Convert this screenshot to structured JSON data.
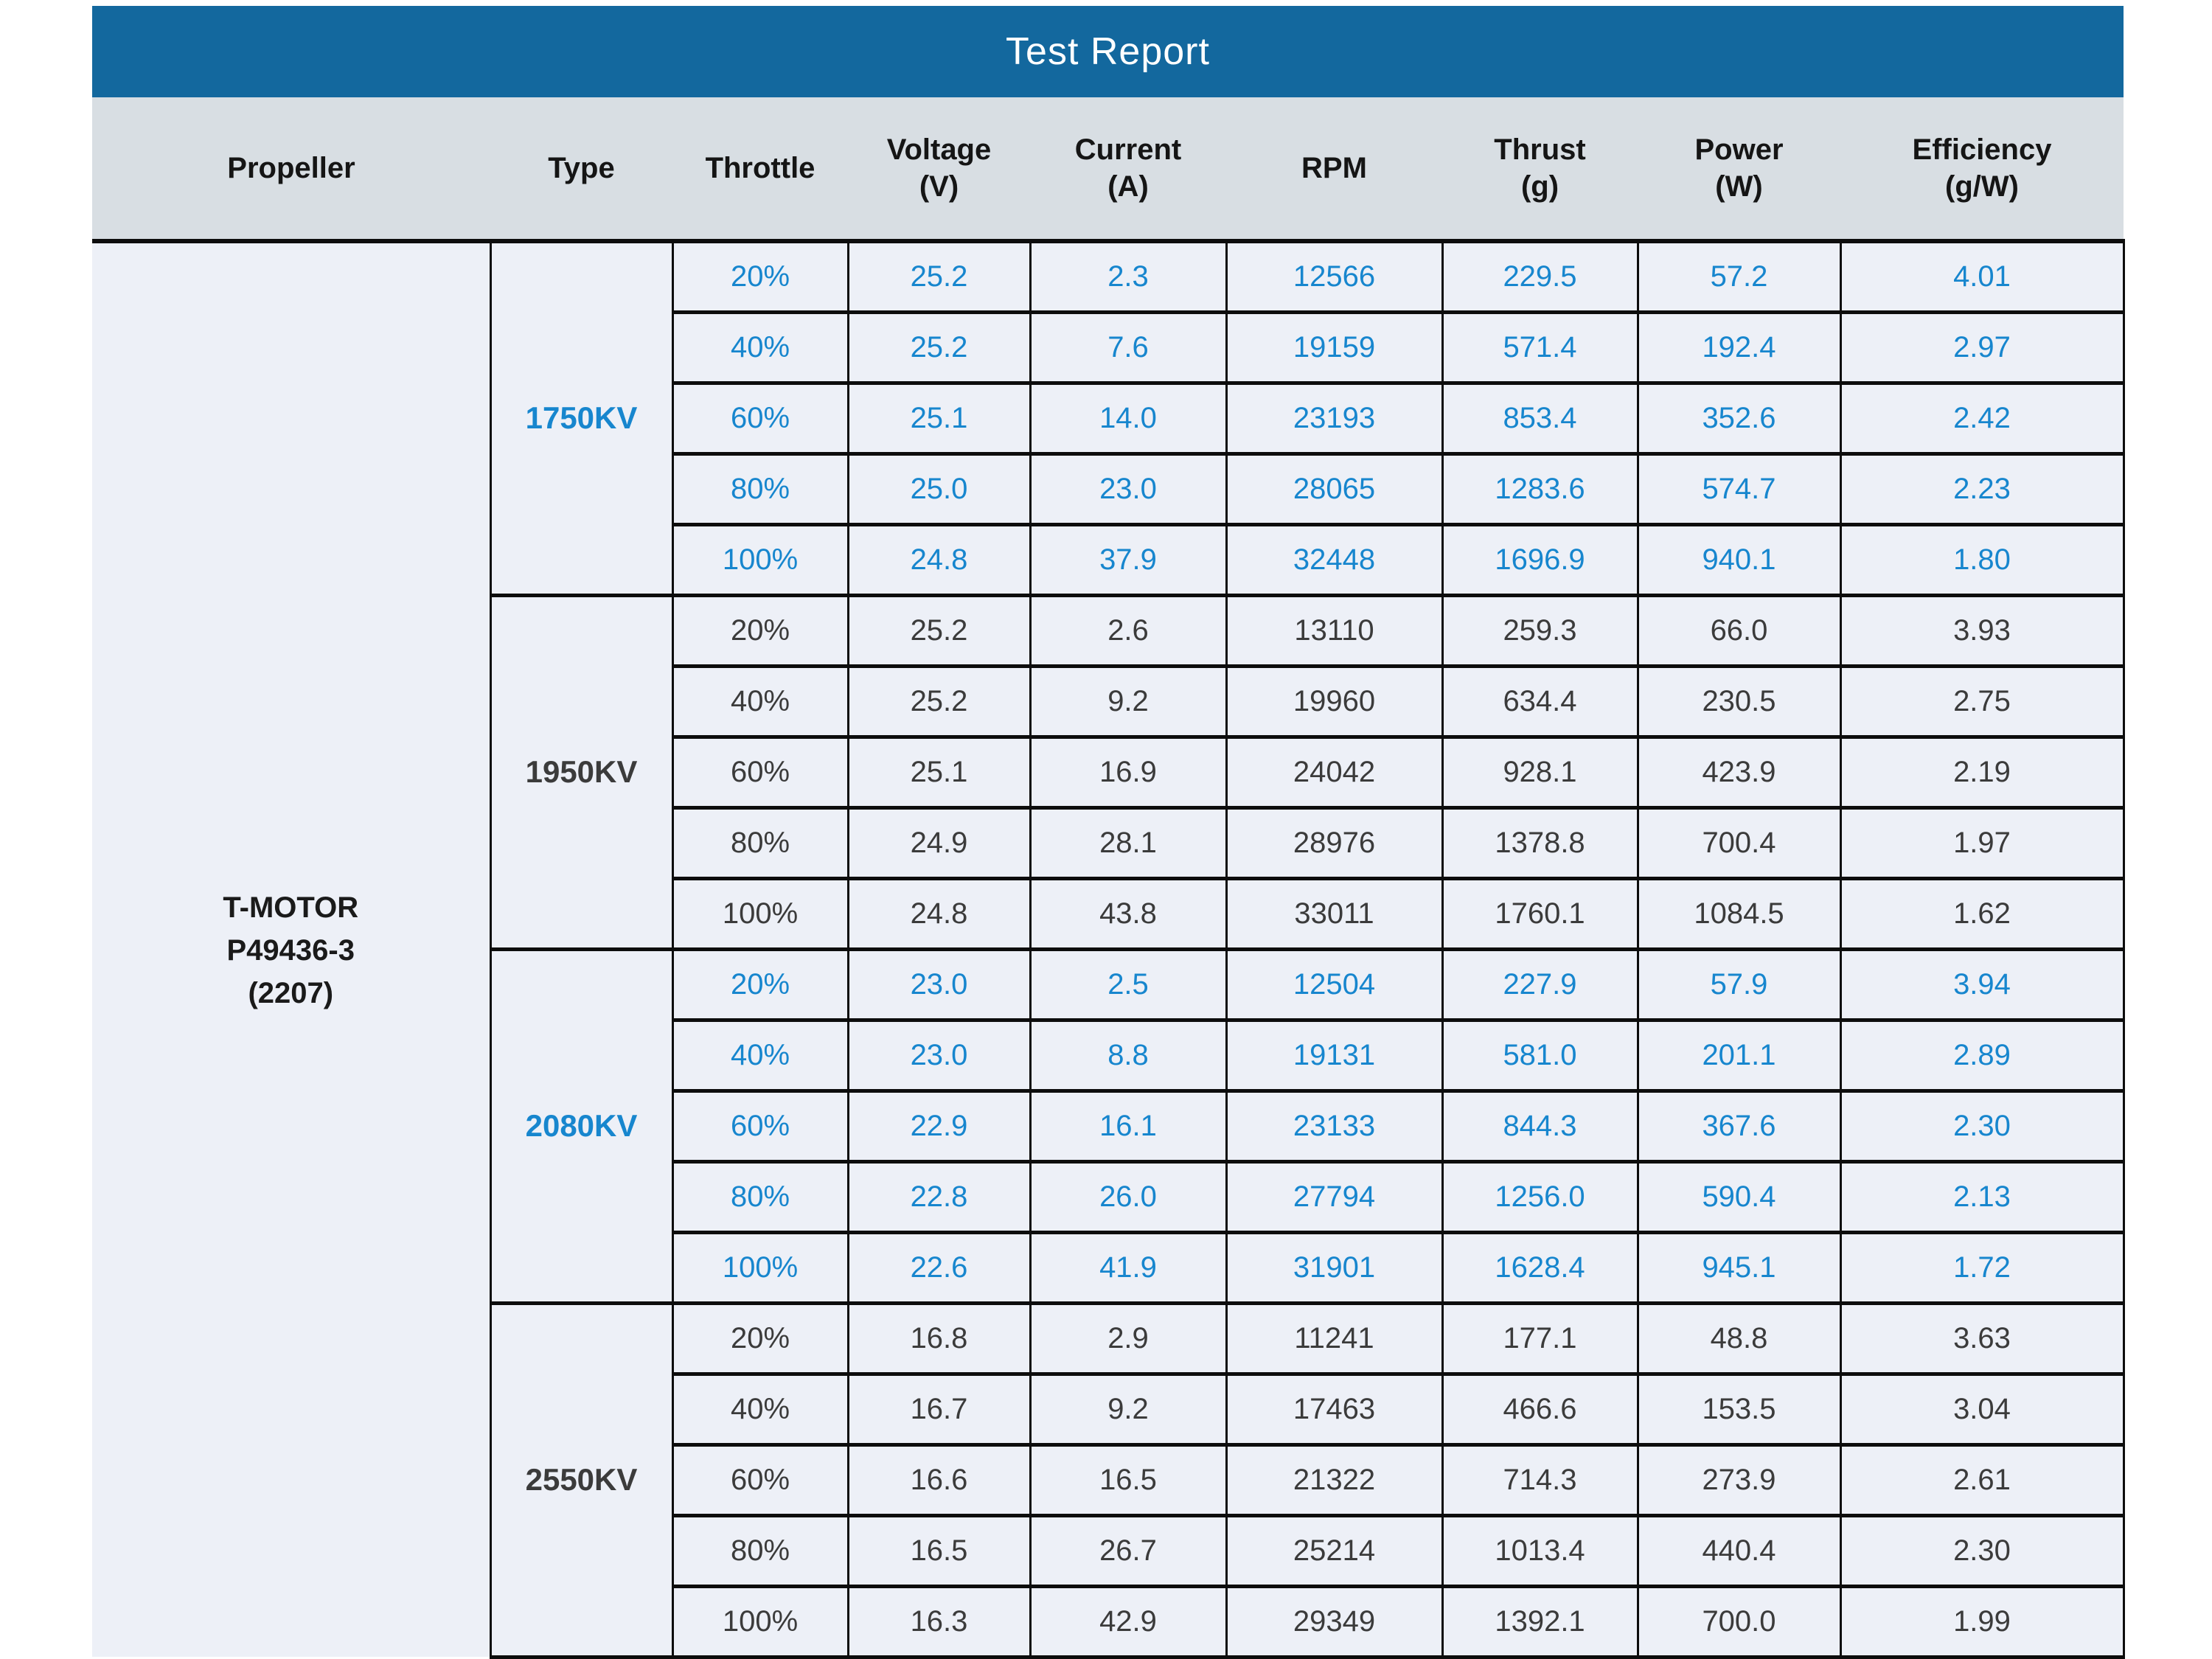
{
  "title": "Test Report",
  "colors": {
    "title_bar": "#13689E",
    "header_bg": "#D8DEE3",
    "cell_bg": "#EDF0F7",
    "blue_text": "#1786CE",
    "dark_text": "#3B3B3B",
    "border": "#0D0D0D"
  },
  "columns": [
    "Propeller",
    "Type",
    "Throttle",
    "Voltage\n(V)",
    "Current\n(A)",
    "RPM",
    "Thrust\n(g)",
    "Power\n(W)",
    "Efficiency\n(g/W)"
  ],
  "propeller": "T-MOTOR\nP49436-3\n(2207)",
  "groups": [
    {
      "type": "1750KV",
      "rows": [
        {
          "throttle": "20%",
          "voltage": "25.2",
          "current": "2.3",
          "rpm": "12566",
          "thrust": "229.5",
          "power": "57.2",
          "efficiency": "4.01"
        },
        {
          "throttle": "40%",
          "voltage": "25.2",
          "current": "7.6",
          "rpm": "19159",
          "thrust": "571.4",
          "power": "192.4",
          "efficiency": "2.97"
        },
        {
          "throttle": "60%",
          "voltage": "25.1",
          "current": "14.0",
          "rpm": "23193",
          "thrust": "853.4",
          "power": "352.6",
          "efficiency": "2.42"
        },
        {
          "throttle": "80%",
          "voltage": "25.0",
          "current": "23.0",
          "rpm": "28065",
          "thrust": "1283.6",
          "power": "574.7",
          "efficiency": "2.23"
        },
        {
          "throttle": "100%",
          "voltage": "24.8",
          "current": "37.9",
          "rpm": "32448",
          "thrust": "1696.9",
          "power": "940.1",
          "efficiency": "1.80"
        }
      ]
    },
    {
      "type": "1950KV",
      "rows": [
        {
          "throttle": "20%",
          "voltage": "25.2",
          "current": "2.6",
          "rpm": "13110",
          "thrust": "259.3",
          "power": "66.0",
          "efficiency": "3.93"
        },
        {
          "throttle": "40%",
          "voltage": "25.2",
          "current": "9.2",
          "rpm": "19960",
          "thrust": "634.4",
          "power": "230.5",
          "efficiency": "2.75"
        },
        {
          "throttle": "60%",
          "voltage": "25.1",
          "current": "16.9",
          "rpm": "24042",
          "thrust": "928.1",
          "power": "423.9",
          "efficiency": "2.19"
        },
        {
          "throttle": "80%",
          "voltage": "24.9",
          "current": "28.1",
          "rpm": "28976",
          "thrust": "1378.8",
          "power": "700.4",
          "efficiency": "1.97"
        },
        {
          "throttle": "100%",
          "voltage": "24.8",
          "current": "43.8",
          "rpm": "33011",
          "thrust": "1760.1",
          "power": "1084.5",
          "efficiency": "1.62"
        }
      ]
    },
    {
      "type": "2080KV",
      "rows": [
        {
          "throttle": "20%",
          "voltage": "23.0",
          "current": "2.5",
          "rpm": "12504",
          "thrust": "227.9",
          "power": "57.9",
          "efficiency": "3.94"
        },
        {
          "throttle": "40%",
          "voltage": "23.0",
          "current": "8.8",
          "rpm": "19131",
          "thrust": "581.0",
          "power": "201.1",
          "efficiency": "2.89"
        },
        {
          "throttle": "60%",
          "voltage": "22.9",
          "current": "16.1",
          "rpm": "23133",
          "thrust": "844.3",
          "power": "367.6",
          "efficiency": "2.30"
        },
        {
          "throttle": "80%",
          "voltage": "22.8",
          "current": "26.0",
          "rpm": "27794",
          "thrust": "1256.0",
          "power": "590.4",
          "efficiency": "2.13"
        },
        {
          "throttle": "100%",
          "voltage": "22.6",
          "current": "41.9",
          "rpm": "31901",
          "thrust": "1628.4",
          "power": "945.1",
          "efficiency": "1.72"
        }
      ]
    },
    {
      "type": "2550KV",
      "rows": [
        {
          "throttle": "20%",
          "voltage": "16.8",
          "current": "2.9",
          "rpm": "11241",
          "thrust": "177.1",
          "power": "48.8",
          "efficiency": "3.63"
        },
        {
          "throttle": "40%",
          "voltage": "16.7",
          "current": "9.2",
          "rpm": "17463",
          "thrust": "466.6",
          "power": "153.5",
          "efficiency": "3.04"
        },
        {
          "throttle": "60%",
          "voltage": "16.6",
          "current": "16.5",
          "rpm": "21322",
          "thrust": "714.3",
          "power": "273.9",
          "efficiency": "2.61"
        },
        {
          "throttle": "80%",
          "voltage": "16.5",
          "current": "26.7",
          "rpm": "25214",
          "thrust": "1013.4",
          "power": "440.4",
          "efficiency": "2.30"
        },
        {
          "throttle": "100%",
          "voltage": "16.3",
          "current": "42.9",
          "rpm": "29349",
          "thrust": "1392.1",
          "power": "700.0",
          "efficiency": "1.99"
        }
      ]
    }
  ]
}
